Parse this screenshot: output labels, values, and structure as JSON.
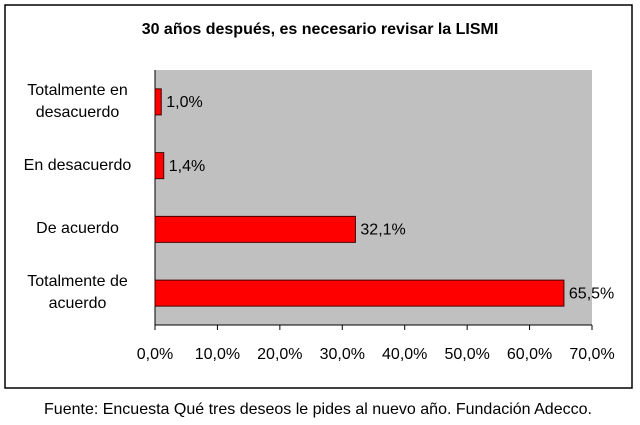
{
  "chart_data": {
    "type": "bar",
    "orientation": "horizontal",
    "title": "30 años después, es necesario revisar la LISMI",
    "categories": [
      "Totalmente en desacuerdo",
      "En desacuerdo",
      "De acuerdo",
      "Totalmente de acuerdo"
    ],
    "values": [
      1.0,
      1.4,
      32.1,
      65.5
    ],
    "value_labels": [
      "1,0%",
      "1,4%",
      "32,1%",
      "65,5%"
    ],
    "color": "#ff0000",
    "xlim": [
      0,
      70
    ],
    "xticks": [
      {
        "value": 0,
        "label": "0,0%"
      },
      {
        "value": 10,
        "label": "10,0%"
      },
      {
        "value": 20,
        "label": "20,0%"
      },
      {
        "value": 30,
        "label": "30,0%"
      },
      {
        "value": 40,
        "label": "40,0%"
      },
      {
        "value": 50,
        "label": "50,0%"
      },
      {
        "value": 60,
        "label": "60,0%"
      },
      {
        "value": 70,
        "label": "70,0%"
      }
    ],
    "grid": false,
    "source": "Fuente: Encuesta Qué tres deseos le pides al nuevo año. Fundación Adecco."
  }
}
